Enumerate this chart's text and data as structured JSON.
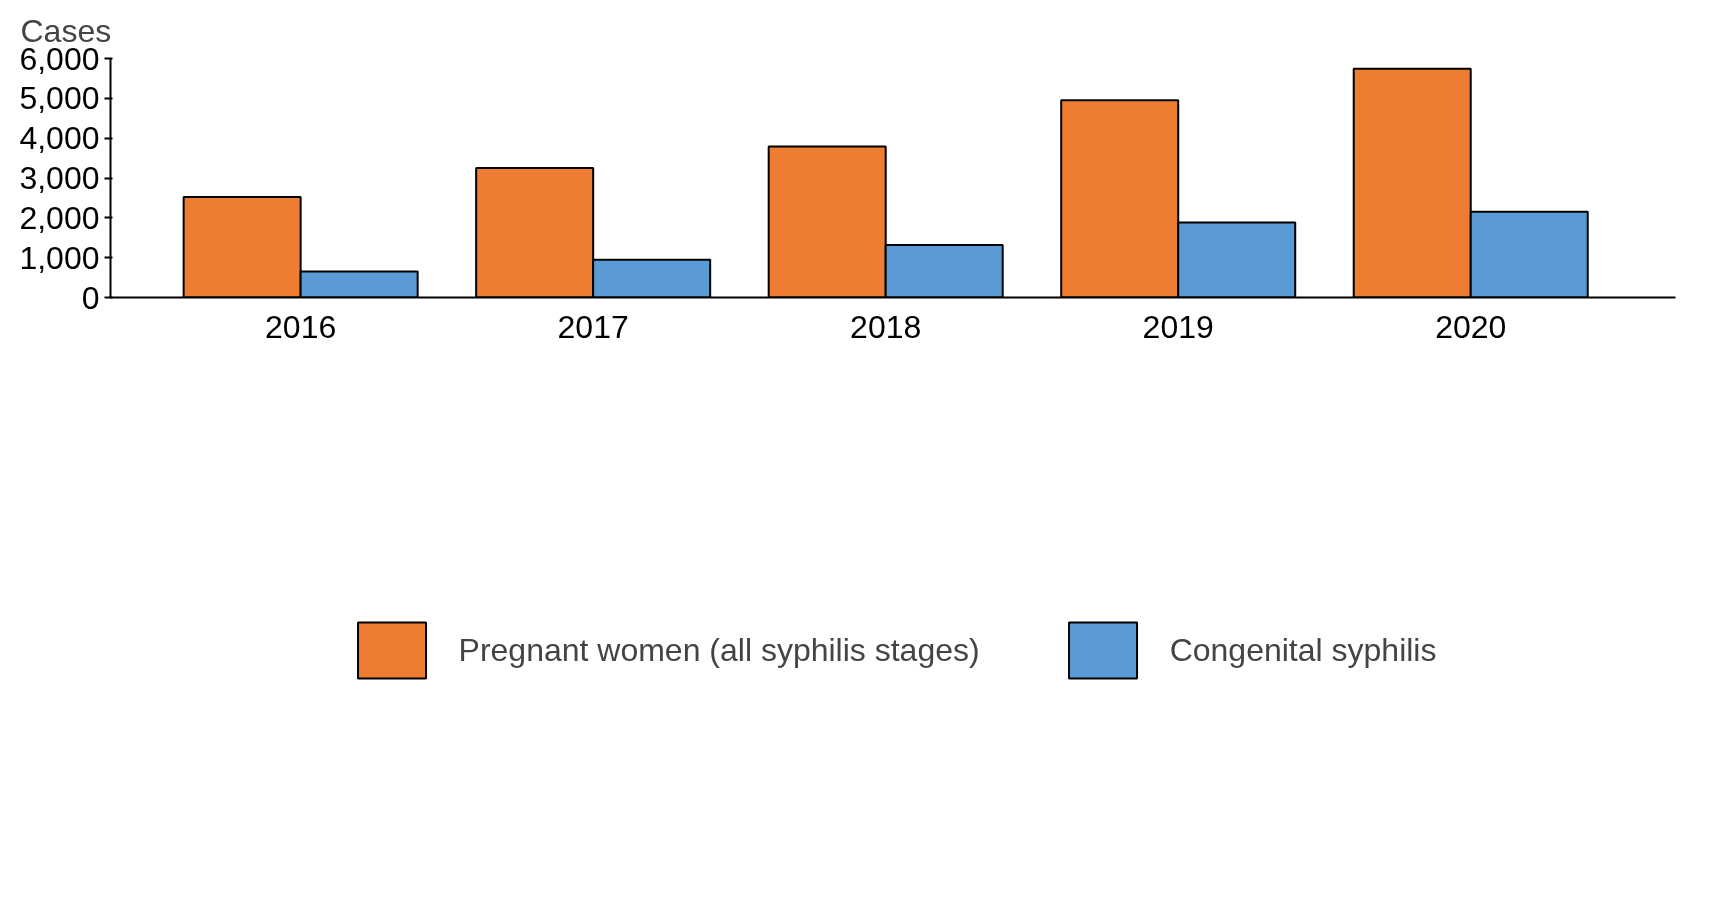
{
  "chart_data": {
    "type": "bar",
    "ylabel": "Cases",
    "categories": [
      "2016",
      "2017",
      "2018",
      "2019",
      "2020"
    ],
    "series": [
      {
        "name": "Pregnant women (all syphilis stages)",
        "color": "#ed7d31",
        "values": [
          2520,
          3250,
          3790,
          4950,
          5740
        ]
      },
      {
        "name": "Congenital syphilis",
        "color": "#5b9bd5",
        "values": [
          650,
          950,
          1320,
          1880,
          2150
        ]
      }
    ],
    "ylim": [
      0,
      6000
    ],
    "yticks": [
      {
        "value": 0,
        "label": "0"
      },
      {
        "value": 1000,
        "label": "1,000"
      },
      {
        "value": 2000,
        "label": "2,000"
      },
      {
        "value": 3000,
        "label": "3,000"
      },
      {
        "value": 4000,
        "label": "4,000"
      },
      {
        "value": 5000,
        "label": "5,000"
      },
      {
        "value": 6000,
        "label": "6,000"
      }
    ],
    "grid": false,
    "legend": "bottom"
  }
}
